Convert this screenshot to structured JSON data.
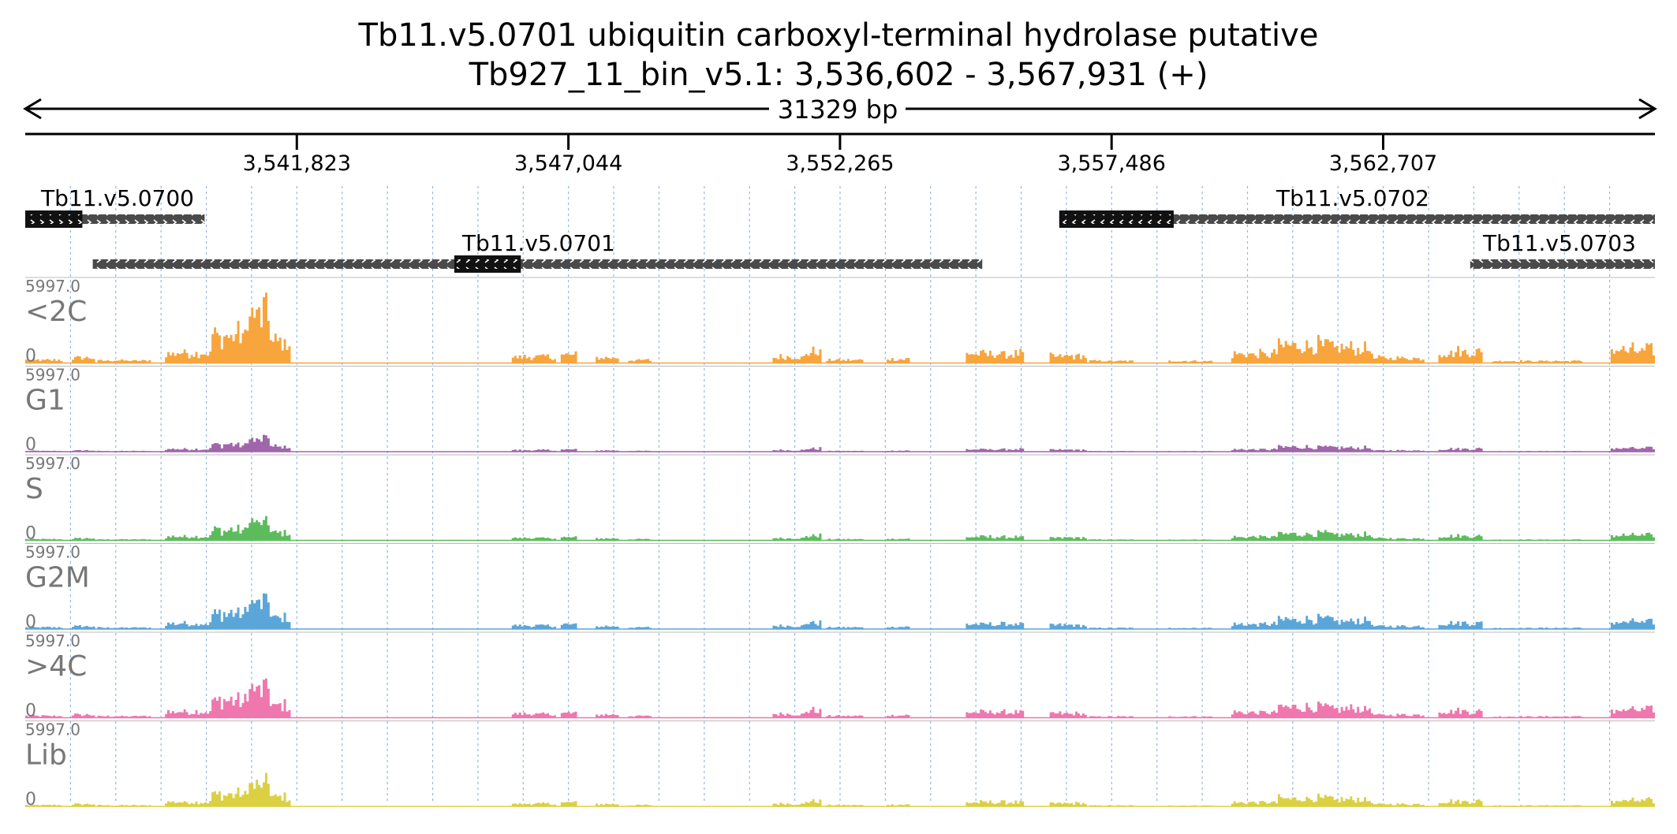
{
  "header": {
    "title_line1": "Tb11.v5.0701  ubiquitin carboxyl-terminal hydrolase  putative",
    "title_line2": "Tb927_11_bin_v5.1: 3,536,602 - 3,567,931 (+)"
  },
  "region": {
    "start": 3536602,
    "end": 3567931,
    "length_label": "31329 bp"
  },
  "ruler": {
    "ticks": [
      {
        "pos": 3541823,
        "label": "3,541,823"
      },
      {
        "pos": 3547044,
        "label": "3,547,044"
      },
      {
        "pos": 3552265,
        "label": "3,552,265"
      },
      {
        "pos": 3557486,
        "label": "3,557,486"
      },
      {
        "pos": 3562707,
        "label": "3,562,707"
      }
    ]
  },
  "genes": [
    {
      "name": "Tb11.v5.0700",
      "strand": "+",
      "start": 3536602,
      "end": 3540050,
      "cds": [
        3536602,
        3537700
      ],
      "row": 0
    },
    {
      "name": "Tb11.v5.0701",
      "strand": "+",
      "start": 3537900,
      "end": 3555000,
      "cds": [
        3544850,
        3546130
      ],
      "row": 1
    },
    {
      "name": "Tb11.v5.0702",
      "strand": "-",
      "start": 3556480,
      "end": 3567931,
      "cds": [
        3556480,
        3558680
      ],
      "row": 0
    },
    {
      "name": "Tb11.v5.0703",
      "strand": "-",
      "start": 3564380,
      "end": 3567931,
      "cds": null,
      "row": 1
    }
  ],
  "tracks": [
    {
      "name": "<2C",
      "max_label": "5997.0",
      "min_label": "0",
      "color": "#f7a53c",
      "scale": 1.0
    },
    {
      "name": "G1",
      "max_label": "5997.0",
      "min_label": "0",
      "color": "#a066aa",
      "scale": 0.26
    },
    {
      "name": "S",
      "max_label": "5997.0",
      "min_label": "0",
      "color": "#5cbc5c",
      "scale": 0.38
    },
    {
      "name": "G2M",
      "max_label": "5997.0",
      "min_label": "0",
      "color": "#5ba6d9",
      "scale": 0.55
    },
    {
      "name": ">4C",
      "max_label": "5997.0",
      "min_label": "0",
      "color": "#ef77ae",
      "scale": 0.6
    },
    {
      "name": "Lib",
      "max_label": "5997.0",
      "min_label": "0",
      "color": "#dbd042",
      "scale": 0.45
    }
  ],
  "coverage_profile": [
    {
      "start": 3536602,
      "end": 3537300,
      "level": 0.06
    },
    {
      "start": 3537500,
      "end": 3537900,
      "level": 0.1
    },
    {
      "start": 3538000,
      "end": 3539000,
      "level": 0.05
    },
    {
      "start": 3539300,
      "end": 3540200,
      "level": 0.2
    },
    {
      "start": 3540200,
      "end": 3540900,
      "level": 0.55
    },
    {
      "start": 3540900,
      "end": 3541300,
      "level": 0.95
    },
    {
      "start": 3541300,
      "end": 3541700,
      "level": 0.4
    },
    {
      "start": 3546000,
      "end": 3546800,
      "level": 0.12
    },
    {
      "start": 3546900,
      "end": 3547200,
      "level": 0.16
    },
    {
      "start": 3547600,
      "end": 3548000,
      "level": 0.1
    },
    {
      "start": 3548200,
      "end": 3548600,
      "level": 0.06
    },
    {
      "start": 3551000,
      "end": 3551600,
      "level": 0.12
    },
    {
      "start": 3551600,
      "end": 3551900,
      "level": 0.24
    },
    {
      "start": 3552000,
      "end": 3552700,
      "level": 0.06
    },
    {
      "start": 3553200,
      "end": 3553600,
      "level": 0.08
    },
    {
      "start": 3554700,
      "end": 3555800,
      "level": 0.18
    },
    {
      "start": 3556300,
      "end": 3557000,
      "level": 0.14
    },
    {
      "start": 3557100,
      "end": 3557900,
      "level": 0.04
    },
    {
      "start": 3558600,
      "end": 3559400,
      "level": 0.04
    },
    {
      "start": 3559800,
      "end": 3560700,
      "level": 0.18
    },
    {
      "start": 3560700,
      "end": 3561700,
      "level": 0.35
    },
    {
      "start": 3561700,
      "end": 3562500,
      "level": 0.3
    },
    {
      "start": 3562500,
      "end": 3563500,
      "level": 0.1
    },
    {
      "start": 3563800,
      "end": 3564600,
      "level": 0.22
    },
    {
      "start": 3564800,
      "end": 3566500,
      "level": 0.04
    },
    {
      "start": 3567100,
      "end": 3567931,
      "level": 0.26
    }
  ]
}
